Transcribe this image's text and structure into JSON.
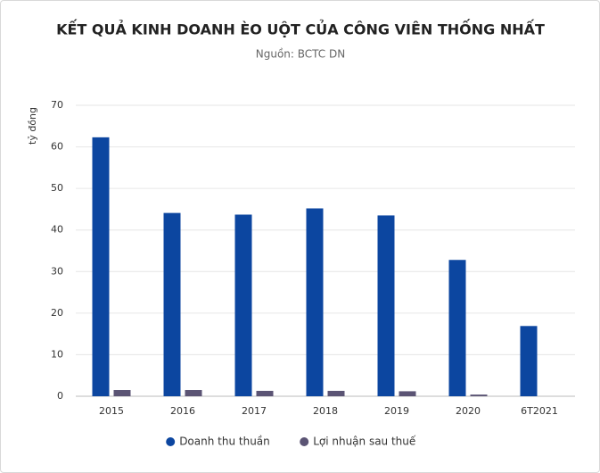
{
  "chart_data": {
    "type": "bar",
    "title": "KẾT QUẢ KINH DOANH ÈO UỘT CỦA CÔNG VIÊN THỐNG NHẤT",
    "subtitle": "Nguồn: BCTC DN",
    "y_label": "tỷ đồng",
    "categories": [
      "2015",
      "2016",
      "2017",
      "2018",
      "2019",
      "2020",
      "6T2021"
    ],
    "series": [
      {
        "name": "Doanh thu thuần",
        "color": "#0c46a0",
        "values": [
          62.3,
          44.1,
          43.7,
          45.2,
          43.5,
          32.8,
          16.9
        ]
      },
      {
        "name": "Lợi nhuận sau thuế",
        "color": "#5b5474",
        "values": [
          1.5,
          1.5,
          1.3,
          1.3,
          1.2,
          0.4,
          0
        ]
      }
    ],
    "ylim": [
      0,
      70
    ],
    "yticks": [
      0,
      10,
      20,
      30,
      40,
      50,
      60,
      70
    ],
    "grid": true,
    "legend": "bottom"
  }
}
